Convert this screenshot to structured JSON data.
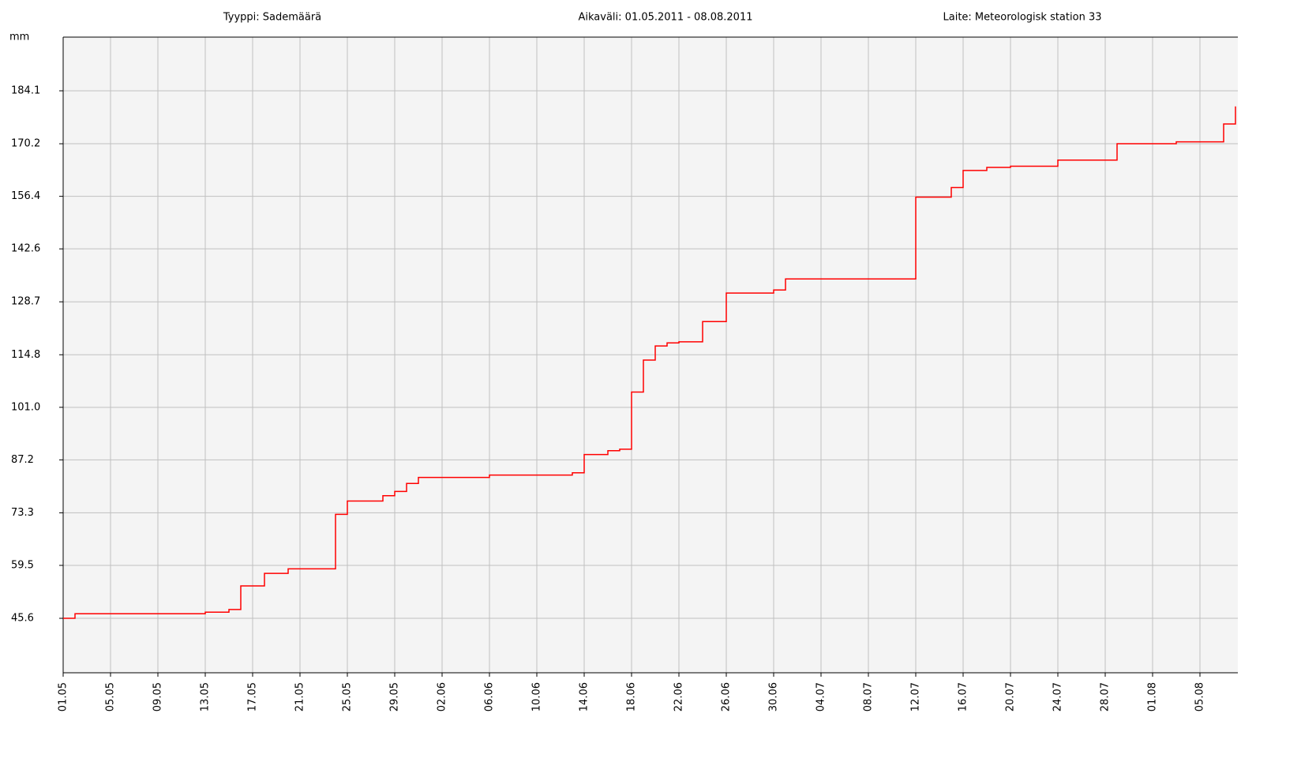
{
  "chart_data": {
    "type": "step",
    "header": [
      "Tyyppi: Sademäärä",
      "Aikaväli: 01.05.2011 - 08.08.2011",
      "Laite: Meteorologisk station 33"
    ],
    "y_label": "mm",
    "grid": true,
    "xlim": [
      "2011-05-01",
      "2011-08-08"
    ],
    "ylim": [
      31.3,
      198.2
    ],
    "yticks": [
      45.6,
      59.5,
      73.3,
      87.2,
      {
        "value": 101,
        "label": "101.0"
      },
      114.8,
      128.7,
      142.6,
      156.4,
      170.2,
      184.1
    ],
    "xticks": [
      {
        "value": "2011-05-01",
        "label": "01.05"
      },
      {
        "value": "2011-05-05",
        "label": "05.05"
      },
      {
        "value": "2011-05-09",
        "label": "09.05"
      },
      {
        "value": "2011-05-13",
        "label": "13.05"
      },
      {
        "value": "2011-05-17",
        "label": "17.05"
      },
      {
        "value": "2011-05-21",
        "label": "21.05"
      },
      {
        "value": "2011-05-25",
        "label": "25.05"
      },
      {
        "value": "2011-05-29",
        "label": "29.05"
      },
      {
        "value": "2011-06-02",
        "label": "02.06"
      },
      {
        "value": "2011-06-06",
        "label": "06.06"
      },
      {
        "value": "2011-06-10",
        "label": "10.06"
      },
      {
        "value": "2011-06-14",
        "label": "14.06"
      },
      {
        "value": "2011-06-18",
        "label": "18.06"
      },
      {
        "value": "2011-06-22",
        "label": "22.06"
      },
      {
        "value": "2011-06-26",
        "label": "26.06"
      },
      {
        "value": "2011-06-30",
        "label": "30.06"
      },
      {
        "value": "2011-07-04",
        "label": "04.07"
      },
      {
        "value": "2011-07-08",
        "label": "08.07"
      },
      {
        "value": "2011-07-12",
        "label": "12.07"
      },
      {
        "value": "2011-07-16",
        "label": "16.07"
      },
      {
        "value": "2011-07-20",
        "label": "20.07"
      },
      {
        "value": "2011-07-24",
        "label": "24.07"
      },
      {
        "value": "2011-07-28",
        "label": "28.07"
      },
      {
        "value": "2011-08-01",
        "label": "01.08"
      },
      {
        "value": "2011-08-05",
        "label": "05.08"
      }
    ],
    "series": [
      {
        "color": "#ff0000",
        "x": [
          "2011-05-01",
          "2011-05-02",
          "2011-05-13",
          "2011-05-15",
          "2011-05-16",
          "2011-05-18",
          "2011-05-20",
          "2011-05-24",
          "2011-05-25",
          "2011-05-28",
          "2011-05-29",
          "2011-05-30",
          "2011-05-31",
          "2011-06-06",
          "2011-06-13",
          "2011-06-14",
          "2011-06-16",
          "2011-06-17",
          "2011-06-18",
          "2011-06-19",
          "2011-06-20",
          "2011-06-21",
          "2011-06-22",
          "2011-06-24",
          "2011-06-26",
          "2011-06-30",
          "2011-07-01",
          "2011-07-12",
          "2011-07-15",
          "2011-07-16",
          "2011-07-18",
          "2011-07-20",
          "2011-07-24",
          "2011-07-29",
          "2011-08-03",
          "2011-08-07",
          "2011-08-08"
        ],
        "values": [
          45.6,
          46.8,
          47.2,
          47.9,
          54.1,
          57.4,
          58.6,
          72.9,
          76.4,
          77.8,
          78.9,
          81.0,
          82.6,
          83.2,
          83.8,
          88.6,
          89.6,
          90.0,
          105.0,
          113.4,
          117.1,
          117.9,
          118.2,
          123.5,
          131.0,
          131.8,
          134.7,
          156.2,
          158.7,
          163.2,
          164.0,
          164.3,
          165.9,
          170.2,
          170.7,
          175.4,
          180.0
        ]
      }
    ]
  }
}
